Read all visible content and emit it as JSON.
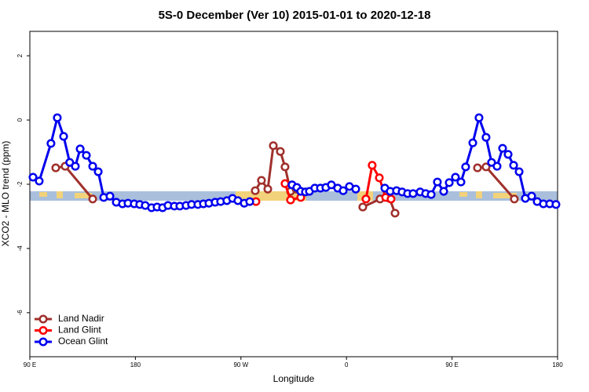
{
  "chart_data": {
    "type": "line",
    "title": "5S-0 December (Ver 10)   2015-01-01 to 2020-12-18",
    "x_label": "Longitude",
    "y_label": "XCO2 - MLO trend (ppm)",
    "xlim": [
      90,
      540
    ],
    "ylim": [
      -7.37,
      2.76
    ],
    "xticks": [
      {
        "value": 90,
        "label": "90 E"
      },
      180,
      {
        "value": 270,
        "label": "90 W"
      },
      {
        "value": 360,
        "label": "0"
      },
      {
        "value": 450,
        "label": "90 E"
      },
      {
        "value": 540,
        "label": "180"
      }
    ],
    "yticks": [
      -6,
      -4,
      -2,
      0,
      2
    ],
    "legend": "bottom-left",
    "series": [
      {
        "name": "Land Nadir",
        "color": "#a0302c",
        "x": [
          112.1,
          120.1,
          143.6,
          null,
          282.2,
          287.5,
          292.9,
          297.6,
          303.6,
          307.6,
          312.3,
          317,
          321,
          null,
          373.9,
          388.6,
          396.7,
          401.4,
          null,
          471.7,
          479,
          503.1
        ],
        "values": [
          -1.49,
          -1.44,
          -2.46,
          null,
          -2.2,
          -1.88,
          -2.15,
          -0.8,
          -0.98,
          -1.46,
          -2.22,
          -2.15,
          -2.22,
          null,
          -2.71,
          -2.46,
          -2.44,
          -2.9,
          null,
          -1.49,
          -1.46,
          -2.46
        ]
      },
      {
        "name": "Land Glint",
        "color": "#ff0000",
        "x": [
          282.8,
          null,
          307.6,
          312.3,
          321,
          null,
          376.6,
          381.9,
          388,
          393.4,
          398
        ],
        "values": [
          -2.54,
          null,
          -1.98,
          -2.49,
          -2.41,
          null,
          -2.46,
          -1.41,
          -1.8,
          -2.41,
          -2.46
        ]
      },
      {
        "name": "Ocean Glint",
        "color": "#0000ee",
        "x": [
          92.7,
          98,
          108,
          113.4,
          118.8,
          124,
          128.8,
          132.9,
          138.2,
          143.6,
          148.3,
          153,
          158.3,
          163.7,
          169,
          173.7,
          179,
          183.7,
          188.4,
          193.8,
          198.5,
          203.2,
          207.8,
          213.2,
          217.9,
          223.2,
          227.9,
          233.3,
          238,
          242.7,
          248,
          252.7,
          258,
          262.8,
          267.4,
          272.8,
          277.5,
          null,
          313.6,
          317.7,
          321,
          325,
          328.4,
          333,
          337.8,
          342.4,
          347.1,
          352.5,
          357.2,
          362.5,
          367.9,
          null,
          392.7,
          397.3,
          402.7,
          407.4,
          412.1,
          416.8,
          422.8,
          427.5,
          432.2,
          437.5,
          442.9,
          447.6,
          452.9,
          457.6,
          461.6,
          467.7,
          473,
          479,
          483.7,
          488.4,
          493.1,
          497.8,
          502.5,
          507.2,
          512.5,
          517.9,
          522.6,
          527.9,
          533.3,
          538.6
        ],
        "values": [
          -1.78,
          -1.9,
          -0.73,
          0.07,
          -0.51,
          -1.32,
          -1.44,
          -0.9,
          -1.1,
          -1.44,
          -1.61,
          -2.41,
          -2.37,
          -2.56,
          -2.61,
          -2.59,
          -2.61,
          -2.63,
          -2.66,
          -2.73,
          -2.71,
          -2.73,
          -2.66,
          -2.68,
          -2.68,
          -2.66,
          -2.63,
          -2.63,
          -2.61,
          -2.59,
          -2.56,
          -2.54,
          -2.51,
          -2.44,
          -2.51,
          -2.59,
          -2.54,
          null,
          -2.02,
          -2.1,
          -2.22,
          -2.24,
          -2.22,
          -2.12,
          -2.12,
          -2.1,
          -2.02,
          -2.12,
          -2.2,
          -2.07,
          -2.15,
          null,
          -2.12,
          -2.22,
          -2.2,
          -2.24,
          -2.29,
          -2.29,
          -2.24,
          -2.29,
          -2.32,
          -1.93,
          -2.22,
          -1.95,
          -1.78,
          -1.93,
          -1.46,
          -0.71,
          0.07,
          -0.54,
          -1.32,
          -1.44,
          -0.88,
          -1.07,
          -1.41,
          -1.61,
          -2.44,
          -2.37,
          -2.54,
          -2.61,
          -2.61,
          -2.63
        ]
      }
    ]
  }
}
